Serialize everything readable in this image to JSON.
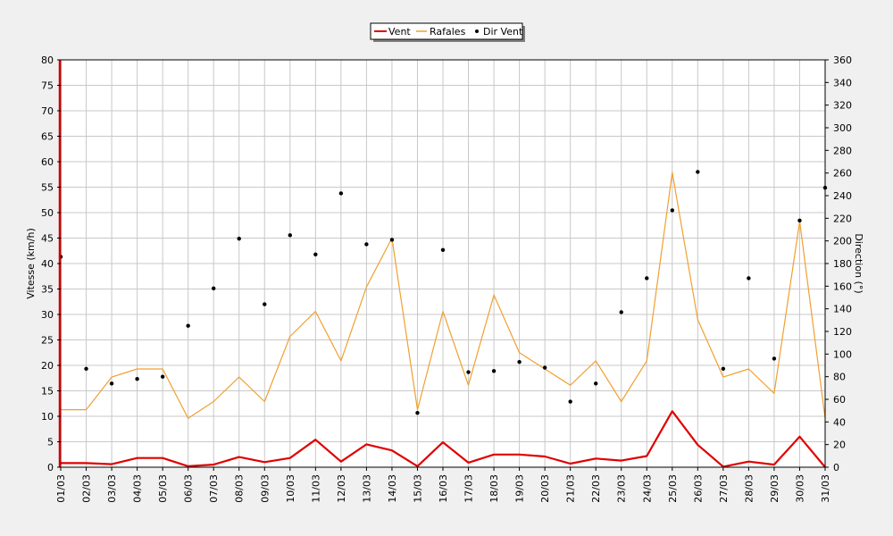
{
  "chart_data": {
    "type": "line",
    "title": "",
    "categories": [
      "01/03",
      "02/03",
      "03/03",
      "04/03",
      "05/03",
      "06/03",
      "07/03",
      "08/03",
      "09/03",
      "10/03",
      "11/03",
      "12/03",
      "13/03",
      "14/03",
      "15/03",
      "16/03",
      "17/03",
      "18/03",
      "19/03",
      "20/03",
      "21/03",
      "22/03",
      "23/03",
      "24/03",
      "25/03",
      "26/03",
      "27/03",
      "28/03",
      "29/03",
      "30/03",
      "31/03"
    ],
    "y_left": {
      "label": "Vitesse (km/h)",
      "min": 0,
      "max": 80,
      "step": 5,
      "ticks": [
        "0",
        "5",
        "10",
        "15",
        "20",
        "25",
        "30",
        "35",
        "40",
        "45",
        "50",
        "55",
        "60",
        "65",
        "70",
        "75",
        "80"
      ]
    },
    "y_right": {
      "label": "Direction (°)",
      "min": 0,
      "max": 360,
      "step": 20,
      "ticks": [
        "0",
        "20",
        "40",
        "60",
        "80",
        "100",
        "120",
        "140",
        "160",
        "180",
        "200",
        "220",
        "240",
        "260",
        "280",
        "300",
        "320",
        "340",
        "360"
      ]
    },
    "grid": true,
    "legend": {
      "position": "top-center",
      "entries": [
        {
          "name": "Vent",
          "marker": "line",
          "color": "#e00000"
        },
        {
          "name": "Rafales",
          "marker": "line",
          "color": "#f0a030"
        },
        {
          "name": "Dir Vent",
          "marker": "dot",
          "color": "#000000"
        }
      ]
    },
    "series": [
      {
        "name": "Vent",
        "axis": "left",
        "style": "line",
        "color": "#e00000",
        "width": 2.2,
        "values": [
          0.8,
          0.8,
          0.6,
          1.8,
          1.8,
          0.2,
          0.5,
          2.0,
          1.0,
          1.8,
          5.4,
          1.1,
          4.5,
          3.3,
          0.2,
          4.9,
          0.9,
          2.5,
          2.5,
          2.1,
          0.7,
          1.7,
          1.3,
          2.2,
          11.0,
          4.4,
          0.1,
          1.1,
          0.5,
          6.0,
          0.0
        ]
      },
      {
        "name": "Rafales",
        "axis": "left",
        "style": "line",
        "color": "#f0a030",
        "width": 1.2,
        "values": [
          11.3,
          11.3,
          17.7,
          19.3,
          19.3,
          9.6,
          12.9,
          17.7,
          12.9,
          25.7,
          30.6,
          20.9,
          35.4,
          45.0,
          11.3,
          30.6,
          16.1,
          33.8,
          22.5,
          19.3,
          16.1,
          20.9,
          12.9,
          20.9,
          57.9,
          29.0,
          17.7,
          19.3,
          14.5,
          48.3,
          9.6
        ]
      },
      {
        "name": "Dir Vent",
        "axis": "right",
        "style": "dots",
        "color": "#000000",
        "values": [
          186,
          87,
          74,
          78,
          80,
          125,
          158,
          202,
          144,
          205,
          188,
          242,
          197,
          201,
          48,
          192,
          84,
          85,
          93,
          88,
          58,
          74,
          137,
          167,
          227,
          261,
          87,
          167,
          96,
          218,
          247
        ]
      }
    ]
  }
}
